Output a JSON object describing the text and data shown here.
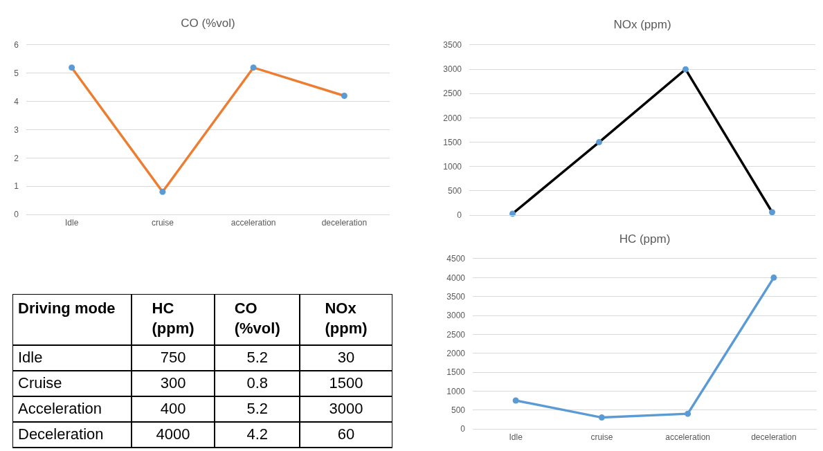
{
  "chart_data": [
    {
      "type": "line",
      "title": "CO (%vol)",
      "categories": [
        "Idle",
        "cruise",
        "acceleration",
        "deceleration"
      ],
      "series": [
        {
          "color": "#ed7d31",
          "colors": [
            "#5b9bd5",
            "#5b9bd5",
            "#5b9bd5",
            "#5b9bd5"
          ],
          "values": [
            5.2,
            0.8,
            5.2,
            4.2
          ]
        }
      ],
      "ylim": [
        0,
        6
      ],
      "yticks": [
        0,
        1,
        2,
        3,
        4,
        5,
        6
      ],
      "grid": "y",
      "marker": "circle",
      "line_style": "solid"
    },
    {
      "type": "line",
      "title": "NOx (ppm)",
      "categories": [
        null,
        null,
        null,
        null
      ],
      "series": [
        {
          "color": "#000000",
          "colors": [
            "#5b9bd5",
            "#5b9bd5",
            "#5b9bd5",
            "#5b9bd5"
          ],
          "values": [
            30,
            1500,
            3000,
            60
          ]
        }
      ],
      "ylim": [
        0,
        3500
      ],
      "yticks": [
        0,
        500,
        1000,
        1500,
        2000,
        2500,
        3000,
        3500
      ],
      "grid": "y",
      "marker": "circle",
      "line_style": "solid",
      "tick_labels": "y"
    },
    {
      "type": "line",
      "title": "HC (ppm)",
      "categories": [
        "Idle",
        "cruise",
        "acceleration",
        "deceleration"
      ],
      "series": [
        {
          "color": "#5b9bd5",
          "colors": [
            "#5b9bd5",
            "#5b9bd5",
            "#5b9bd5",
            "#5b9bd5"
          ],
          "values": [
            750,
            300,
            400,
            4000
          ]
        }
      ],
      "ylim": [
        0,
        4500
      ],
      "yticks": [
        0,
        500,
        1000,
        1500,
        2000,
        2500,
        3000,
        3500,
        4000,
        4500
      ],
      "grid": "y",
      "marker": "circle",
      "line_style": "solid"
    },
    {
      "type": "other",
      "title": "Driving mode",
      "categories": [
        "Idle",
        "Cruise",
        "Acceleration",
        "Deceleration"
      ],
      "series": [
        {
          "name": "HC (ppm)",
          "values": [
            750,
            300,
            400,
            4000
          ]
        },
        {
          "name": "CO (%vol)",
          "values": [
            5.2,
            0.8,
            5.2,
            4.2
          ]
        },
        {
          "name": "NOx (ppm)",
          "values": [
            30,
            1500,
            3000,
            60
          ]
        }
      ],
      "data_labels": true
    }
  ]
}
